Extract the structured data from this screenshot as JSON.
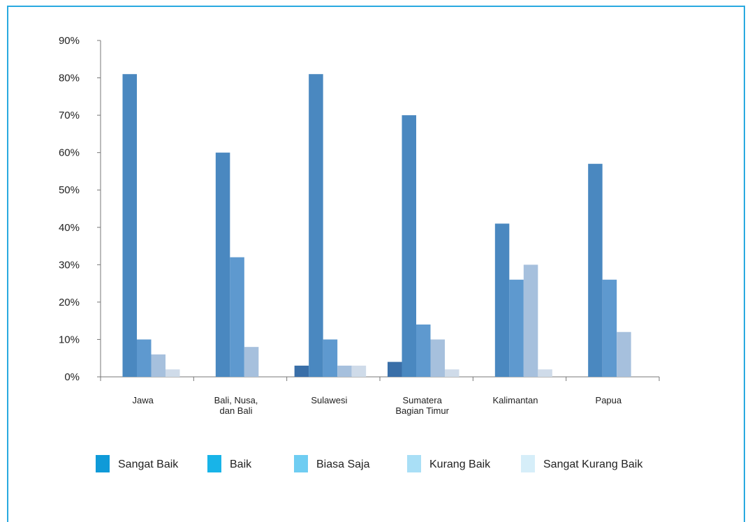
{
  "chart_data": {
    "type": "bar",
    "title": "",
    "xlabel": "",
    "ylabel": "",
    "ylim": [
      0,
      90
    ],
    "yticks": [
      "0%",
      "10%",
      "20%",
      "30%",
      "40%",
      "50%",
      "60%",
      "70%",
      "80%",
      "90%"
    ],
    "categories": [
      [
        "Jawa"
      ],
      [
        "Bali, Nusa,",
        "dan Bali"
      ],
      [
        "Sulawesi"
      ],
      [
        "Sumatera",
        "Bagian Timur"
      ],
      [
        "Kalimantan"
      ],
      [
        "Papua"
      ]
    ],
    "series": [
      {
        "name": "Sangat Baik",
        "values": [
          0,
          0,
          3,
          4,
          0,
          0
        ],
        "bar_color": "#3a6fa8",
        "legend_color": "#0f9ad8"
      },
      {
        "name": "Baik",
        "values": [
          81,
          60,
          81,
          70,
          41,
          57
        ],
        "bar_color": "#4a88c0",
        "legend_color": "#18b4e8"
      },
      {
        "name": "Biasa Saja",
        "values": [
          10,
          32,
          10,
          14,
          26,
          26
        ],
        "bar_color": "#5e99cf",
        "legend_color": "#6fcdf2"
      },
      {
        "name": "Kurang Baik",
        "values": [
          6,
          8,
          3,
          10,
          30,
          12
        ],
        "bar_color": "#a6c0dd",
        "legend_color": "#a9dff6"
      },
      {
        "name": "Sangat Kurang Baik",
        "values": [
          2,
          0,
          3,
          2,
          2,
          0
        ],
        "bar_color": "#cfdbe9",
        "legend_color": "#d6eef9"
      }
    ],
    "legend_position": "bottom",
    "grid": false
  },
  "frame_color": "#29a9e0"
}
